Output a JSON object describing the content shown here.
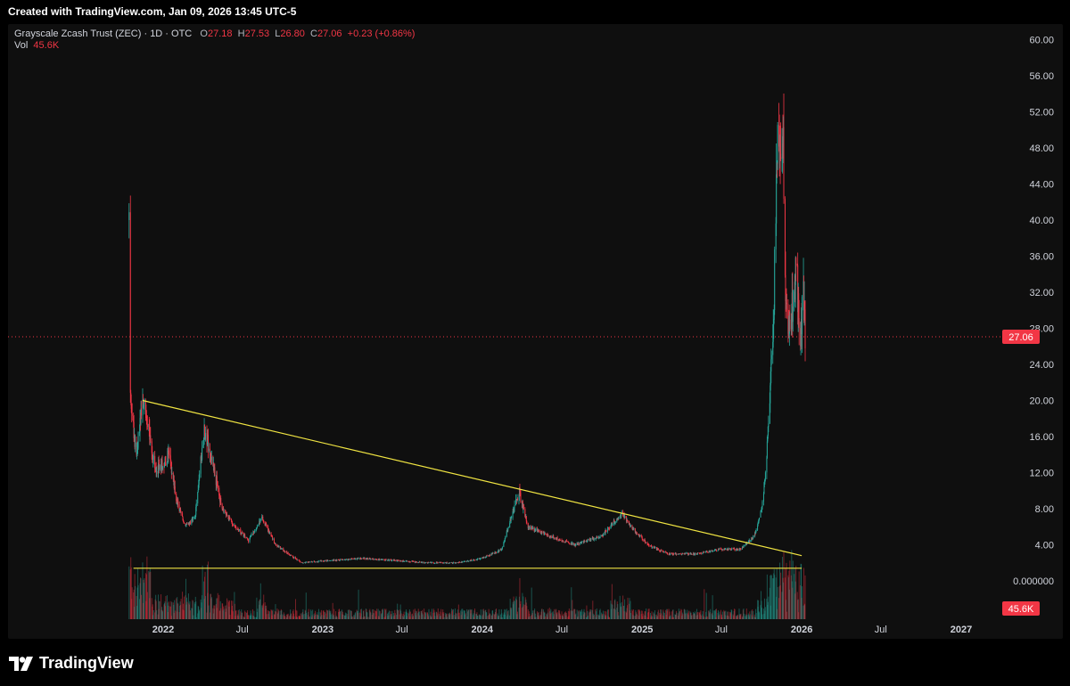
{
  "header": {
    "created_text": "Created with TradingView.com, Jan 09, 2026 13:45 UTC-5"
  },
  "legend": {
    "symbol": "Grayscale Zcash Trust (ZEC) · 1D · OTC",
    "open_label": "O",
    "open": "27.18",
    "high_label": "H",
    "high": "27.53",
    "low_label": "L",
    "low": "26.80",
    "close_label": "C",
    "close": "27.06",
    "change": "+0.23 (+0.86%)",
    "vol_label": "Vol",
    "vol": "45.6K"
  },
  "footer": {
    "brand": "TradingView"
  },
  "colors": {
    "up": "#26a69a",
    "down": "#f23645",
    "trendline": "#f0e442",
    "background": "#0f0f0f",
    "axis_text": "#d1d4dc",
    "price_line": "#f23645"
  },
  "chart_data": {
    "type": "candlestick",
    "x_axis": {
      "ticks": [
        "2022",
        "Jul",
        "2023",
        "Jul",
        "2024",
        "Jul",
        "2025",
        "Jul",
        "2026",
        "Jul",
        "2027"
      ]
    },
    "y_axis": {
      "ticks": [
        "60.00",
        "56.00",
        "52.00",
        "48.00",
        "44.00",
        "40.00",
        "36.00",
        "32.00",
        "28.00",
        "24.00",
        "20.00",
        "16.00",
        "12.00",
        "8.00",
        "4.00",
        "0.000000"
      ],
      "range": [
        -4,
        60
      ]
    },
    "last_price": {
      "value": 27.06,
      "label": "27.06"
    },
    "last_volume": {
      "label": "45.6K"
    },
    "price_path_approx": [
      [
        "2021-10-15",
        40.0
      ],
      [
        "2021-10-18",
        20.0
      ],
      [
        "2021-11-01",
        14.0
      ],
      [
        "2021-11-15",
        20.0
      ],
      [
        "2021-12-01",
        16.0
      ],
      [
        "2021-12-15",
        12.0
      ],
      [
        "2022-01-15",
        14.0
      ],
      [
        "2022-02-01",
        9.0
      ],
      [
        "2022-02-20",
        6.0
      ],
      [
        "2022-03-15",
        7.0
      ],
      [
        "2022-04-05",
        17.0
      ],
      [
        "2022-04-25",
        13.0
      ],
      [
        "2022-05-15",
        8.0
      ],
      [
        "2022-06-15",
        6.0
      ],
      [
        "2022-07-15",
        4.5
      ],
      [
        "2022-08-15",
        7.0
      ],
      [
        "2022-09-15",
        4.0
      ],
      [
        "2022-10-15",
        3.0
      ],
      [
        "2022-11-15",
        2.0
      ],
      [
        "2023-01-01",
        2.2
      ],
      [
        "2023-04-01",
        2.5
      ],
      [
        "2023-07-01",
        2.2
      ],
      [
        "2023-09-01",
        2.0
      ],
      [
        "2023-11-01",
        2.0
      ],
      [
        "2024-01-01",
        2.5
      ],
      [
        "2024-02-15",
        3.5
      ],
      [
        "2024-03-25",
        10.0
      ],
      [
        "2024-04-15",
        6.0
      ],
      [
        "2024-06-01",
        5.0
      ],
      [
        "2024-08-01",
        4.0
      ],
      [
        "2024-10-01",
        5.0
      ],
      [
        "2024-11-15",
        7.5
      ],
      [
        "2024-12-15",
        5.5
      ],
      [
        "2025-01-15",
        4.0
      ],
      [
        "2025-03-01",
        3.0
      ],
      [
        "2025-05-01",
        3.0
      ],
      [
        "2025-07-01",
        3.5
      ],
      [
        "2025-08-15",
        3.5
      ],
      [
        "2025-09-15",
        5.0
      ],
      [
        "2025-10-01",
        8.0
      ],
      [
        "2025-10-10",
        12.0
      ],
      [
        "2025-10-20",
        20.0
      ],
      [
        "2025-10-28",
        28.0
      ],
      [
        "2025-11-05",
        45.0
      ],
      [
        "2025-11-08",
        55.0
      ],
      [
        "2025-11-15",
        42.0
      ],
      [
        "2025-11-20",
        48.0
      ],
      [
        "2025-11-25",
        32.0
      ],
      [
        "2025-12-01",
        26.0
      ],
      [
        "2025-12-10",
        30.0
      ],
      [
        "2025-12-20",
        35.0
      ],
      [
        "2025-12-28",
        26.0
      ],
      [
        "2026-01-05",
        32.0
      ],
      [
        "2026-01-09",
        27.06
      ]
    ],
    "trendlines": [
      {
        "name": "resistance",
        "from": [
          "2021-11-15",
          20.0
        ],
        "to": [
          "2026-01-01",
          2.8
        ]
      },
      {
        "name": "support",
        "from": [
          "2021-10-25",
          1.4
        ],
        "to": [
          "2026-01-01",
          1.4
        ]
      }
    ]
  }
}
